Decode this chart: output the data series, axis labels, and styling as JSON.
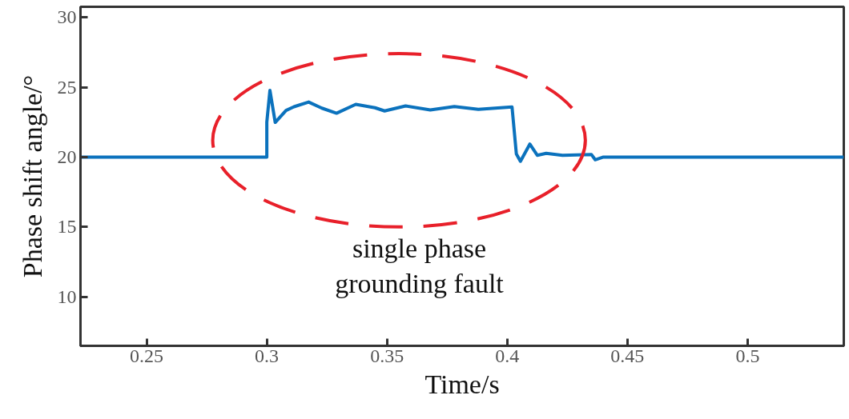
{
  "chart_data": {
    "type": "line",
    "xlabel": "Time/s",
    "ylabel": "Phase shift angle/°",
    "xlim": [
      0.2225,
      0.54
    ],
    "ylim": [
      6.5,
      30.75
    ],
    "xticks": [
      0.25,
      0.3,
      0.35,
      0.4,
      0.45,
      0.5
    ],
    "yticks": [
      10,
      15,
      20,
      25,
      30
    ],
    "grid": false,
    "marker": "none",
    "line_style": "solid",
    "annotations": [
      "single phase\ngrounding fault"
    ],
    "series": [
      {
        "color": "#0b72bd",
        "x": [
          0.2225,
          0.3,
          0.3,
          0.3013,
          0.3035,
          0.308,
          0.3113,
          0.3174,
          0.3229,
          0.329,
          0.337,
          0.345,
          0.349,
          0.3577,
          0.368,
          0.378,
          0.388,
          0.402,
          0.4038,
          0.4055,
          0.4094,
          0.4125,
          0.4162,
          0.423,
          0.435,
          0.4366,
          0.44,
          0.54
        ],
        "values": [
          20.0,
          20.0,
          22.5,
          24.77,
          22.48,
          23.34,
          23.6,
          23.94,
          23.5,
          23.14,
          23.77,
          23.53,
          23.3,
          23.66,
          23.37,
          23.62,
          23.41,
          23.58,
          20.23,
          19.7,
          20.93,
          20.13,
          20.27,
          20.13,
          20.19,
          19.81,
          20.0,
          20.0
        ]
      }
    ]
  }
}
